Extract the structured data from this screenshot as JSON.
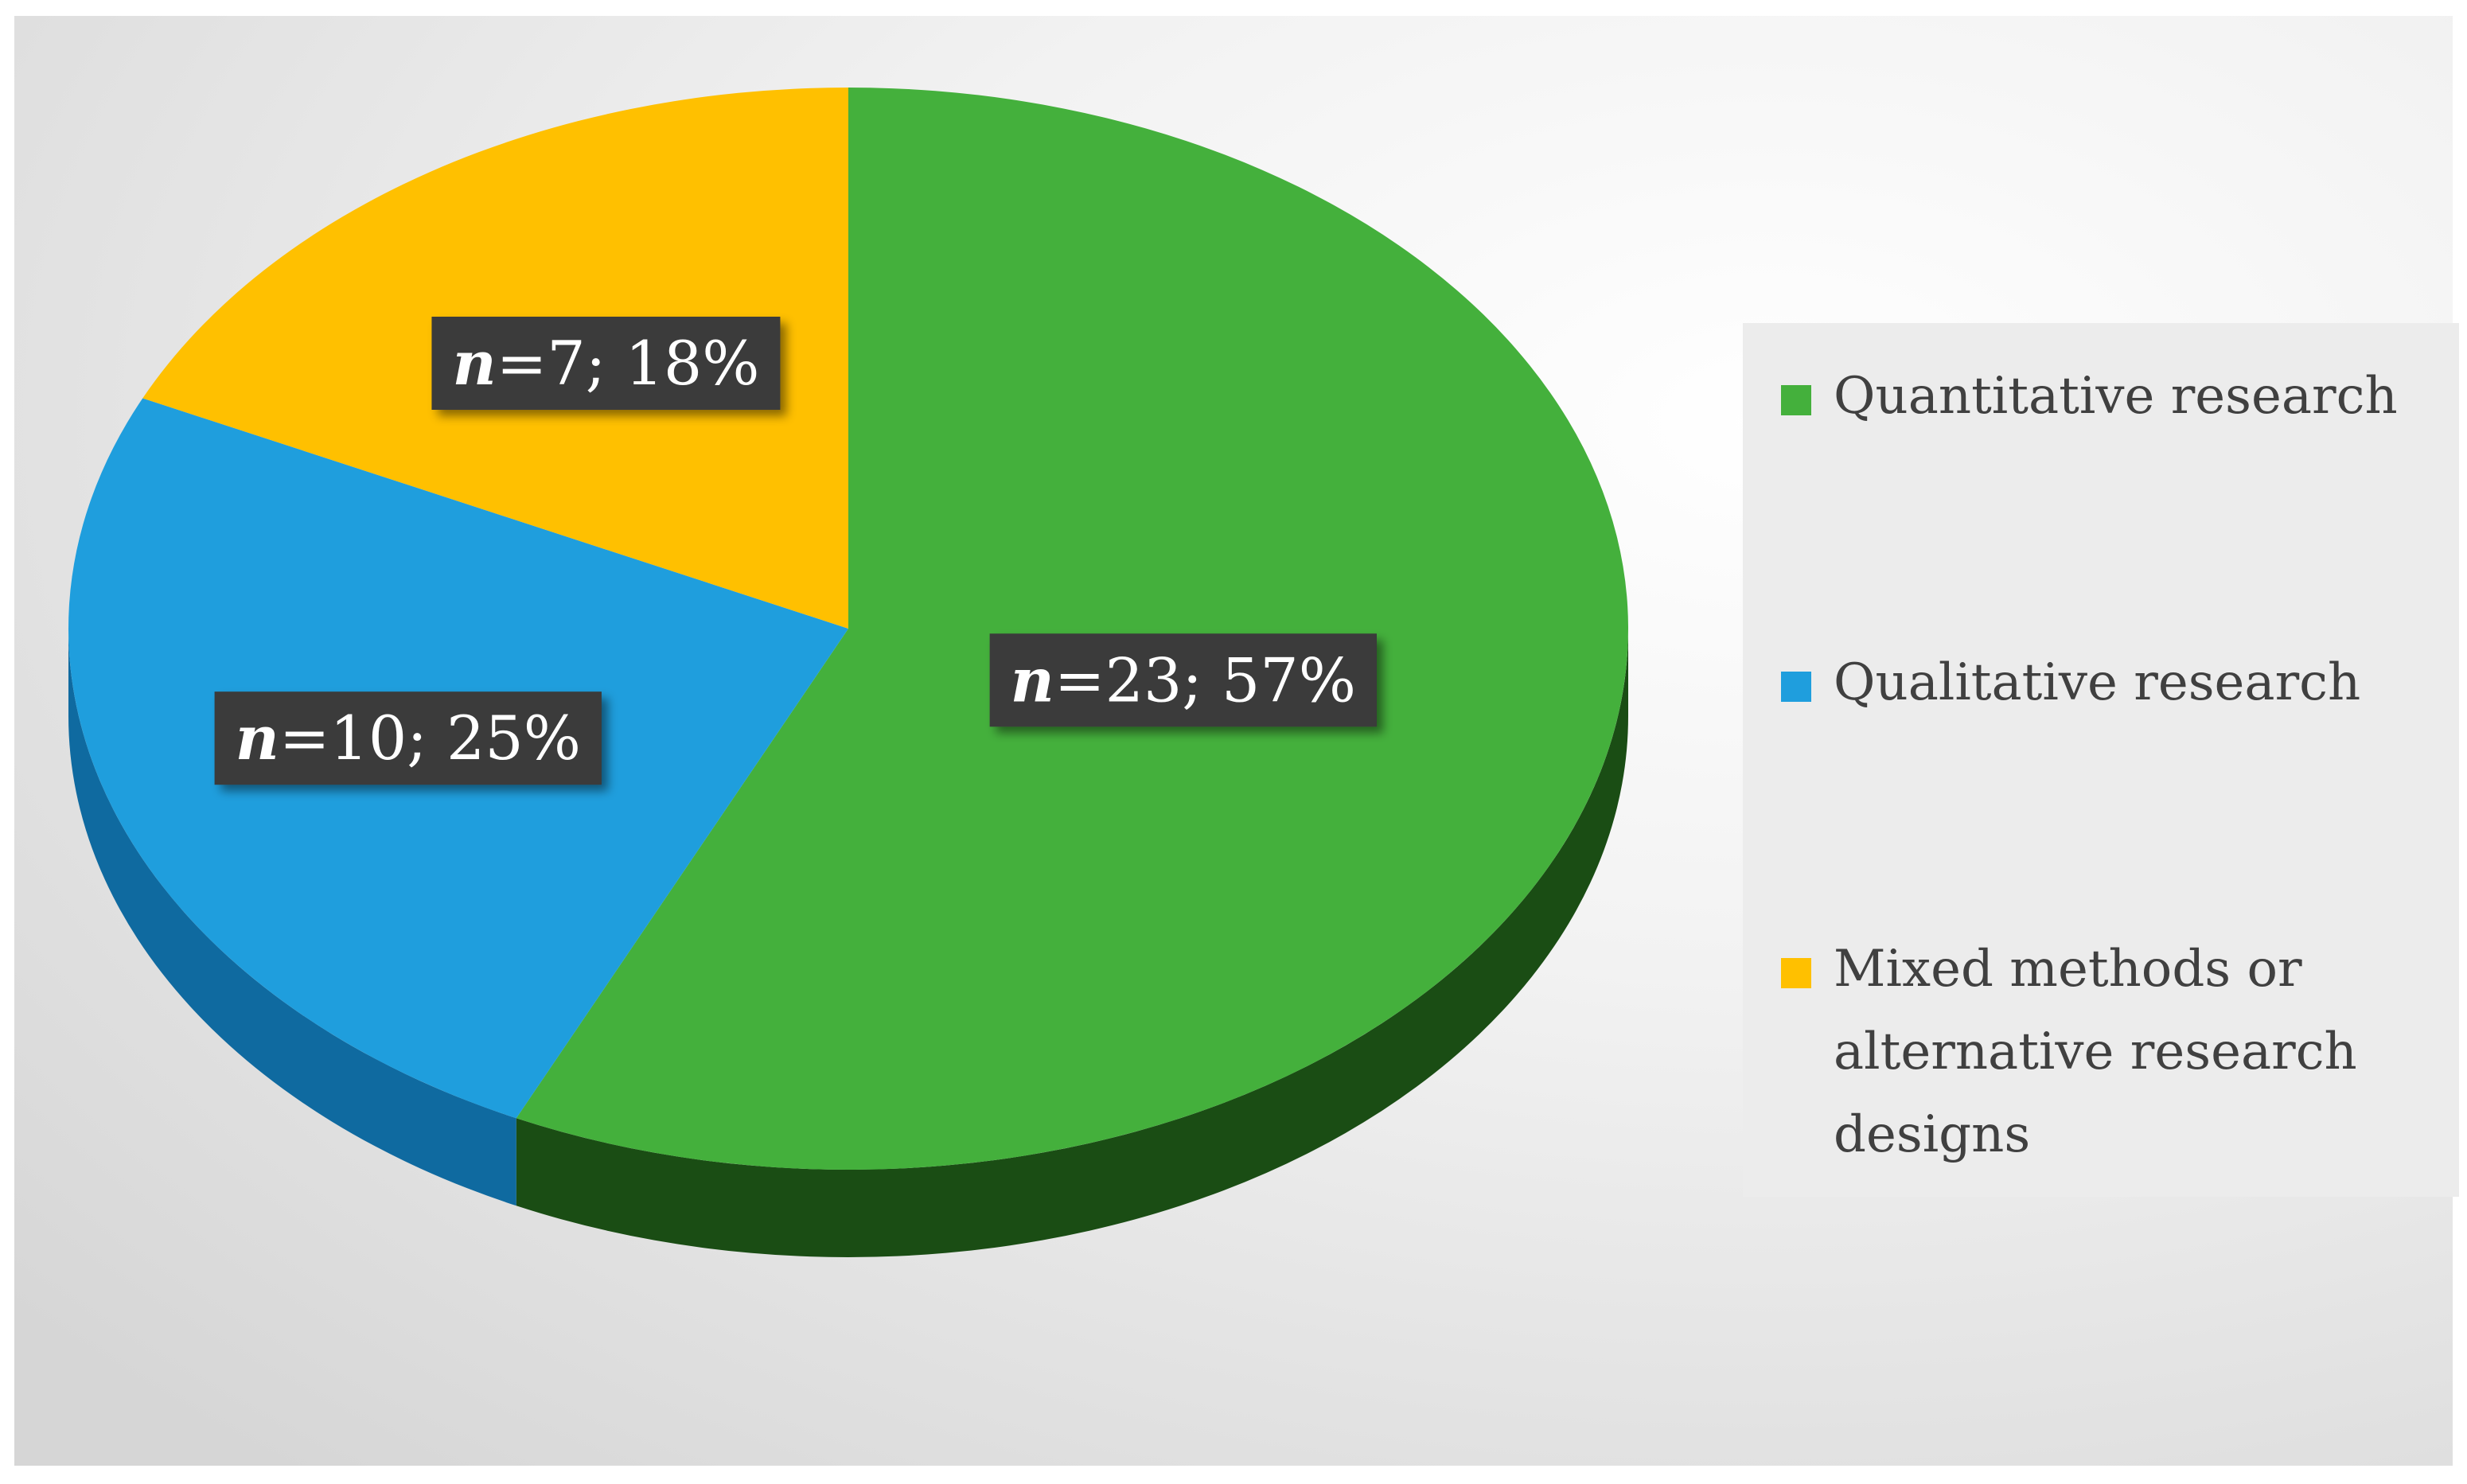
{
  "chart_data": {
    "type": "pie",
    "style": "3d",
    "slices": [
      {
        "name": "Quantitative research",
        "n": 23,
        "percent": 57,
        "value": 0.57,
        "color": "#44b03c",
        "side_color": "#1a4d14",
        "label_n": "n",
        "label_rest": "=23; 57%"
      },
      {
        "name": "Qualitative research",
        "n": 10,
        "percent": 25,
        "value": 0.25,
        "color": "#1f9edd",
        "side_color": "#0f6aa0",
        "label_n": "n",
        "label_rest": "=10; 25%"
      },
      {
        "name": "Mixed methods or alternative research designs",
        "n": 7,
        "percent": 18,
        "value": 0.18,
        "color": "#ffc000",
        "side_color": "#b88a00",
        "label_n": "n",
        "label_rest": "=7; 18%"
      }
    ],
    "legend": {
      "placement": "right",
      "items": [
        {
          "lines": [
            "Quantitative research"
          ],
          "color": "#44b03c"
        },
        {
          "lines": [
            "Qualitative research"
          ],
          "color": "#1f9edd"
        },
        {
          "lines": [
            "Mixed methods or",
            "alternative research",
            "designs"
          ],
          "color": "#ffc000"
        }
      ]
    }
  }
}
